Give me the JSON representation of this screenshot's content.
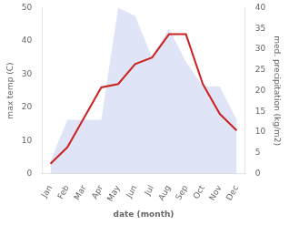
{
  "chart_data": {
    "type": "line",
    "xlabel": "date (month)",
    "ylabel": "max temp (C)",
    "y2label": "med. precipitation (kg/m2)",
    "categories": [
      "Jan",
      "Feb",
      "Mar",
      "Apr",
      "May",
      "Jun",
      "Jul",
      "Aug",
      "Sep",
      "Oct",
      "Nov",
      "Dec"
    ],
    "series": [
      {
        "type": "area",
        "color": "#c5cef0",
        "axis": "y2",
        "values": [
          3,
          13,
          13,
          13,
          40,
          38,
          28,
          35,
          27,
          21,
          21,
          13
        ]
      },
      {
        "type": "line",
        "color": "#cc2222",
        "values": [
          3,
          8,
          17,
          26,
          27,
          33,
          35,
          42,
          42,
          27,
          18,
          13
        ]
      }
    ],
    "ylim": [
      0,
      50
    ],
    "yticks": [
      0,
      10,
      20,
      30,
      40,
      50
    ],
    "y2lim": [
      0,
      40
    ],
    "y2ticks": [
      0,
      5,
      10,
      15,
      20,
      25,
      30,
      35,
      40
    ],
    "grid": false
  }
}
